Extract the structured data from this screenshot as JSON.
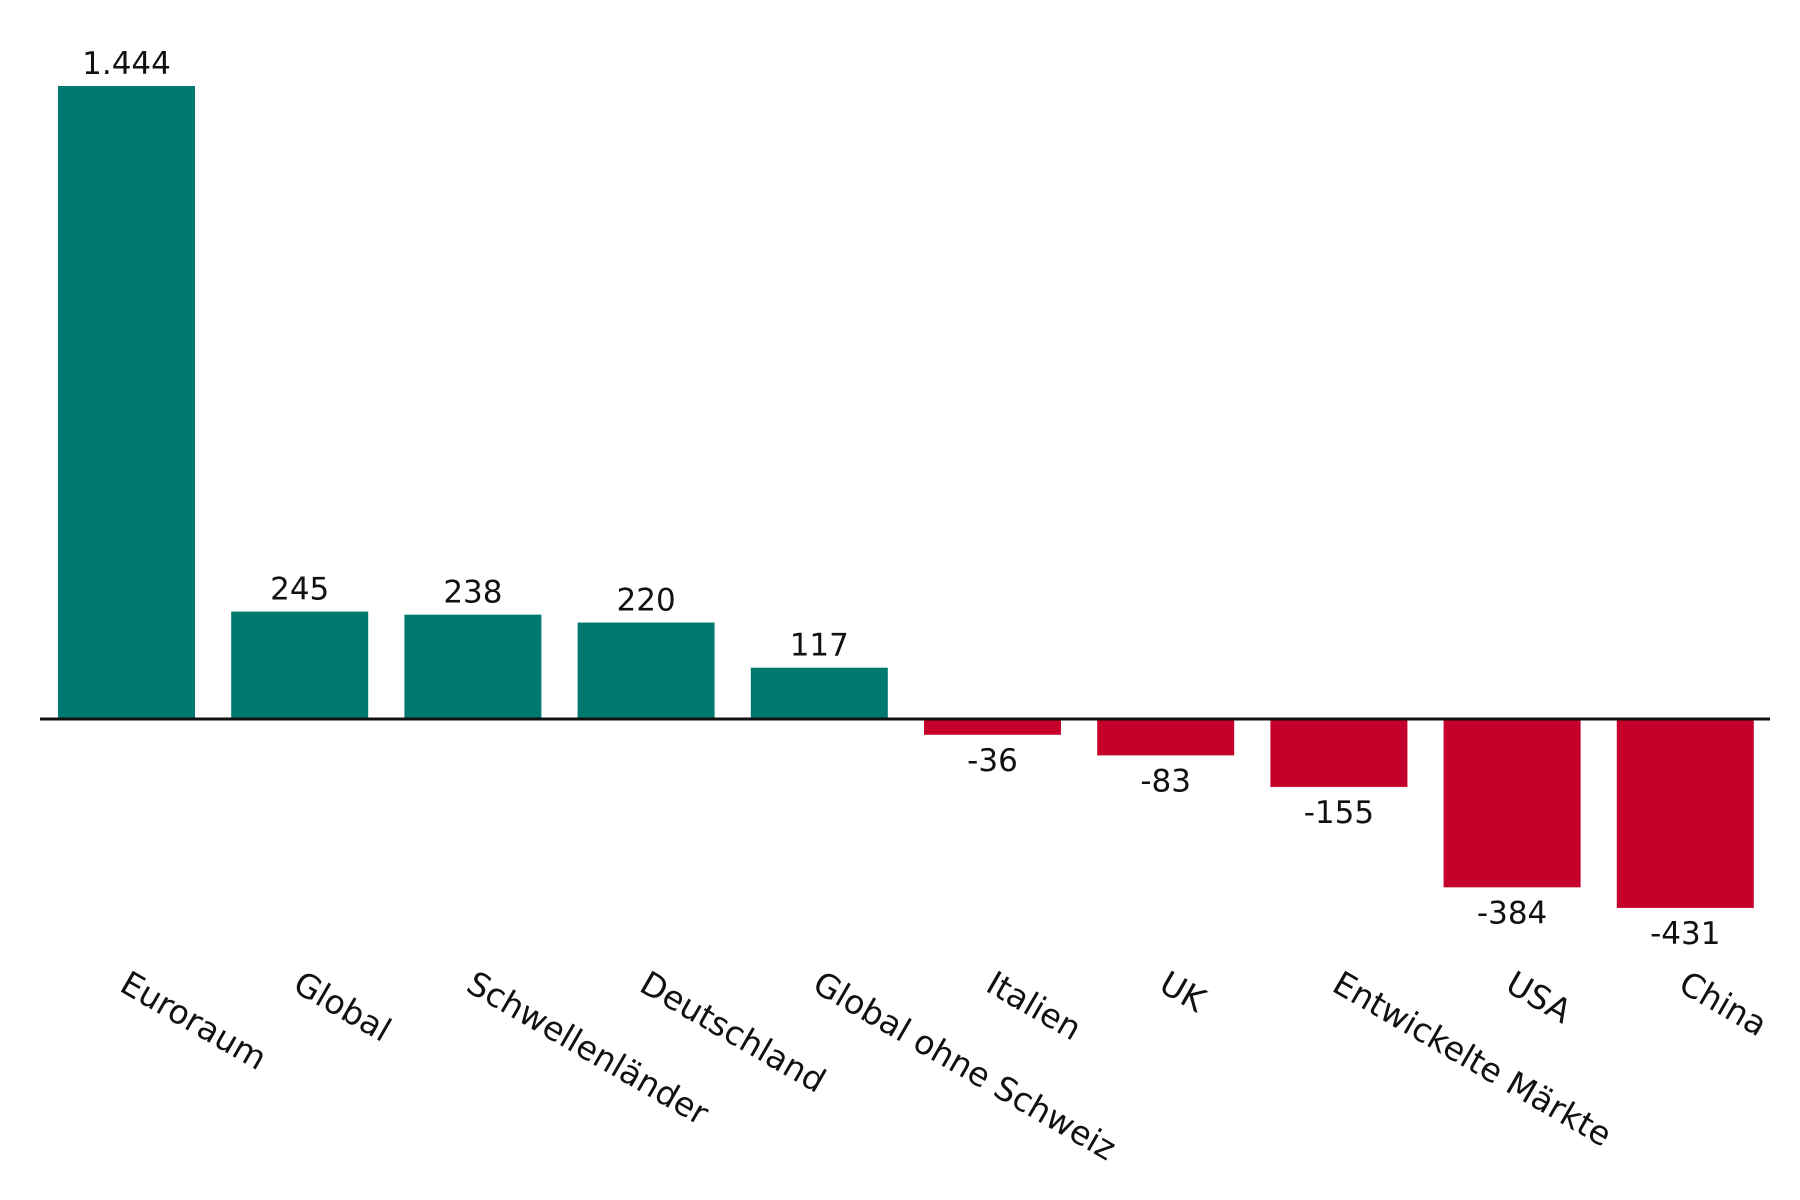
{
  "chart_data": {
    "type": "bar",
    "title": "",
    "xlabel": "",
    "ylabel": "",
    "categories": [
      "Euroraum",
      "Global",
      "Schwellenländer",
      "Deutschland",
      "Global ohne Schweiz",
      "Italien",
      "UK",
      "Entwickelte Märkte",
      "USA",
      "China"
    ],
    "values": [
      1444,
      245,
      238,
      220,
      117,
      -36,
      -83,
      -155,
      -384,
      -431
    ],
    "value_labels": [
      "1.444",
      "245",
      "238",
      "220",
      "117",
      "-36",
      "-83",
      "-155",
      "-384",
      "-431"
    ],
    "ylim": [
      -431,
      1444
    ],
    "grid": false,
    "colors": {
      "positive": "#007a70",
      "negative": "#c4002b",
      "axis": "#111111"
    }
  }
}
